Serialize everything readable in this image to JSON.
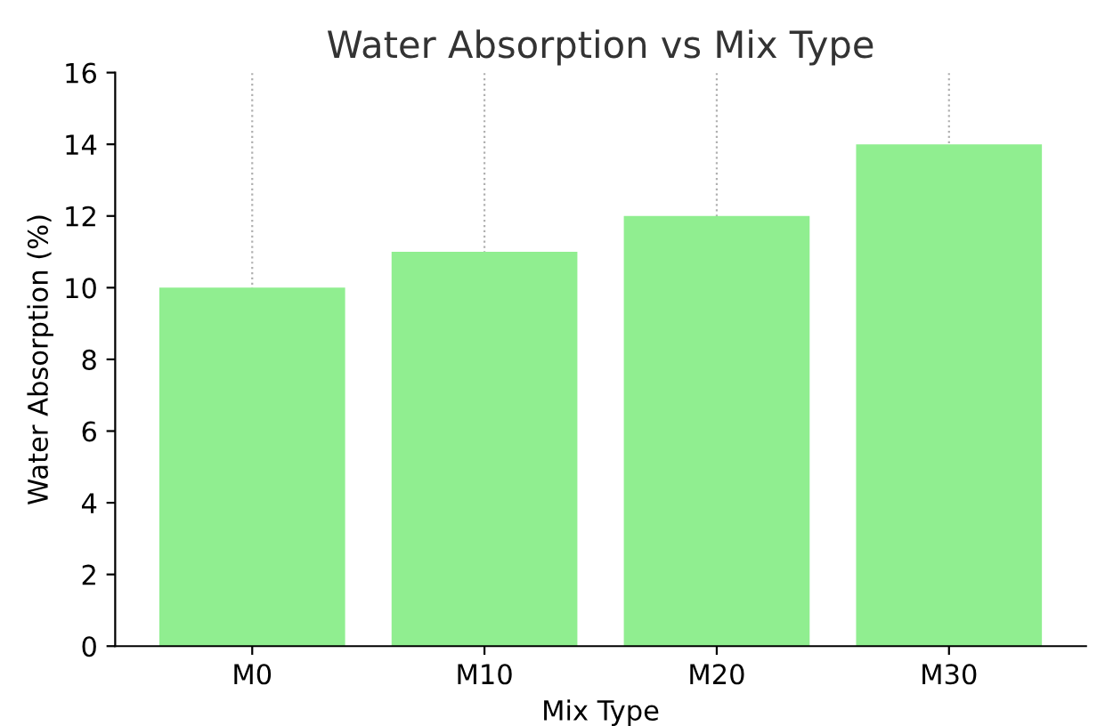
{
  "chart_data": {
    "type": "bar",
    "title": "Water Absorption vs Mix Type",
    "xlabel": "Mix Type",
    "ylabel": "Water Absorption (%)",
    "categories": [
      "M0",
      "M10",
      "M20",
      "M30"
    ],
    "values": [
      10,
      11,
      12,
      14
    ],
    "color": "#90ee90",
    "ylim": [
      0,
      16
    ],
    "yticks": [
      0,
      2,
      4,
      6,
      8,
      10,
      12,
      14,
      16
    ],
    "grid": "x"
  }
}
